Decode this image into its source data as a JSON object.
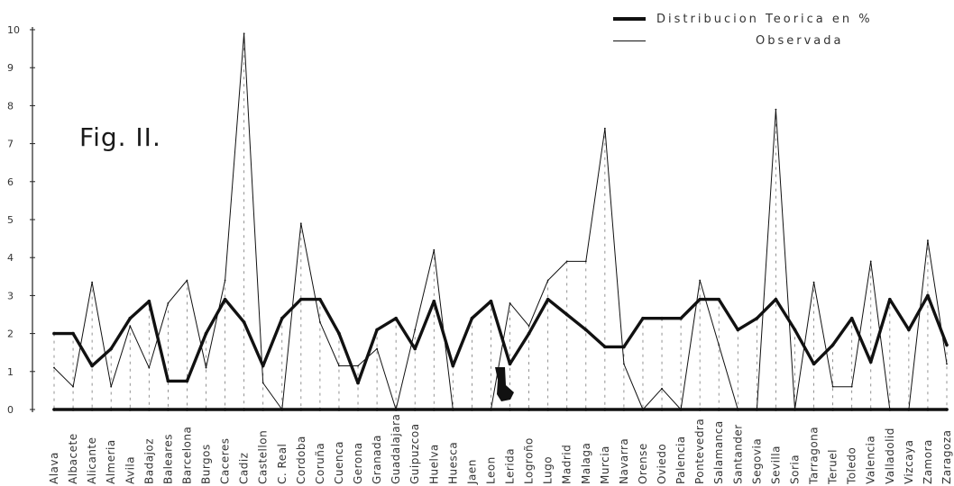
{
  "figure": {
    "label": "Fig. II."
  },
  "legend": {
    "items": [
      {
        "label": "Distribucion  Teorica  en  %",
        "style": "thick"
      },
      {
        "label": "Observada",
        "style": "thin"
      }
    ],
    "placement": "top-right"
  },
  "chart_data": {
    "type": "line",
    "ylim": [
      0,
      10
    ],
    "yticks": [
      "0",
      "1",
      "2",
      "3",
      "4",
      "5",
      "6",
      "7",
      "8",
      "9",
      "10"
    ],
    "grid": "dotted vertical drop lines per category",
    "categories": [
      "Alava",
      "Albacete",
      "Alicante",
      "Almeria",
      "Avila",
      "Badajoz",
      "Baleares",
      "Barcelona",
      "Burgos",
      "Caceres",
      "Cadiz",
      "Castellon",
      "C. Real",
      "Cordoba",
      "Coruña",
      "Cuenca",
      "Gerona",
      "Granada",
      "Guadalajara",
      "Guipuzcoa",
      "Huelva",
      "Huesca",
      "Jaen",
      "Leon",
      "Lerida",
      "Logroño",
      "Lugo",
      "Madrid",
      "Malaga",
      "Murcia",
      "Navarra",
      "Orense",
      "Oviedo",
      "Palencia",
      "Pontevedra",
      "Salamanca",
      "Santander",
      "Segovia",
      "Sevilla",
      "Soria",
      "Tarragona",
      "Teruel",
      "Toledo",
      "Valencia",
      "Valladolid",
      "Vizcaya",
      "Zamora",
      "Zaragoza"
    ],
    "series": [
      {
        "name": "Distribucion Teorica en %",
        "style": "thick",
        "values": [
          2.0,
          2.0,
          1.15,
          1.6,
          2.4,
          2.85,
          0.75,
          0.75,
          2.0,
          2.9,
          2.3,
          1.15,
          2.4,
          2.9,
          2.9,
          2.0,
          0.7,
          2.1,
          2.4,
          1.6,
          2.85,
          1.15,
          2.4,
          2.85,
          1.2,
          2.0,
          2.9,
          2.5,
          2.1,
          1.65,
          1.65,
          2.4,
          2.4,
          2.4,
          2.9,
          2.9,
          2.1,
          2.4,
          2.9,
          2.1,
          1.2,
          1.7,
          2.4,
          1.25,
          2.9,
          2.1,
          3.0,
          1.7
        ]
      },
      {
        "name": "Observada",
        "style": "thin",
        "values": [
          1.1,
          0.6,
          3.35,
          0.6,
          2.2,
          1.1,
          2.8,
          3.4,
          1.1,
          3.4,
          9.9,
          0.7,
          0.0,
          4.9,
          2.3,
          1.15,
          1.15,
          1.6,
          0.0,
          2.1,
          4.2,
          0.0,
          0.0,
          0.0,
          2.8,
          2.2,
          3.4,
          3.9,
          3.9,
          7.4,
          1.2,
          0.0,
          0.55,
          0.0,
          3.4,
          1.7,
          0.0,
          0.0,
          7.9,
          0.0,
          3.35,
          0.6,
          0.6,
          3.9,
          0.0,
          0.0,
          4.45,
          1.2
        ]
      },
      {
        "name": "Baseline",
        "style": "thick",
        "values": [
          0,
          0,
          0,
          0,
          0,
          0,
          0,
          0,
          0,
          0,
          0,
          0,
          0,
          0,
          0,
          0,
          0,
          0,
          0,
          0,
          0,
          0,
          0,
          0,
          0,
          0,
          0,
          0,
          0,
          0,
          0,
          0,
          0,
          0,
          0,
          0,
          0,
          0,
          0,
          0,
          0,
          0,
          0,
          0,
          0,
          0,
          0,
          0
        ]
      }
    ],
    "xlabel": "",
    "ylabel": "",
    "title": ""
  }
}
